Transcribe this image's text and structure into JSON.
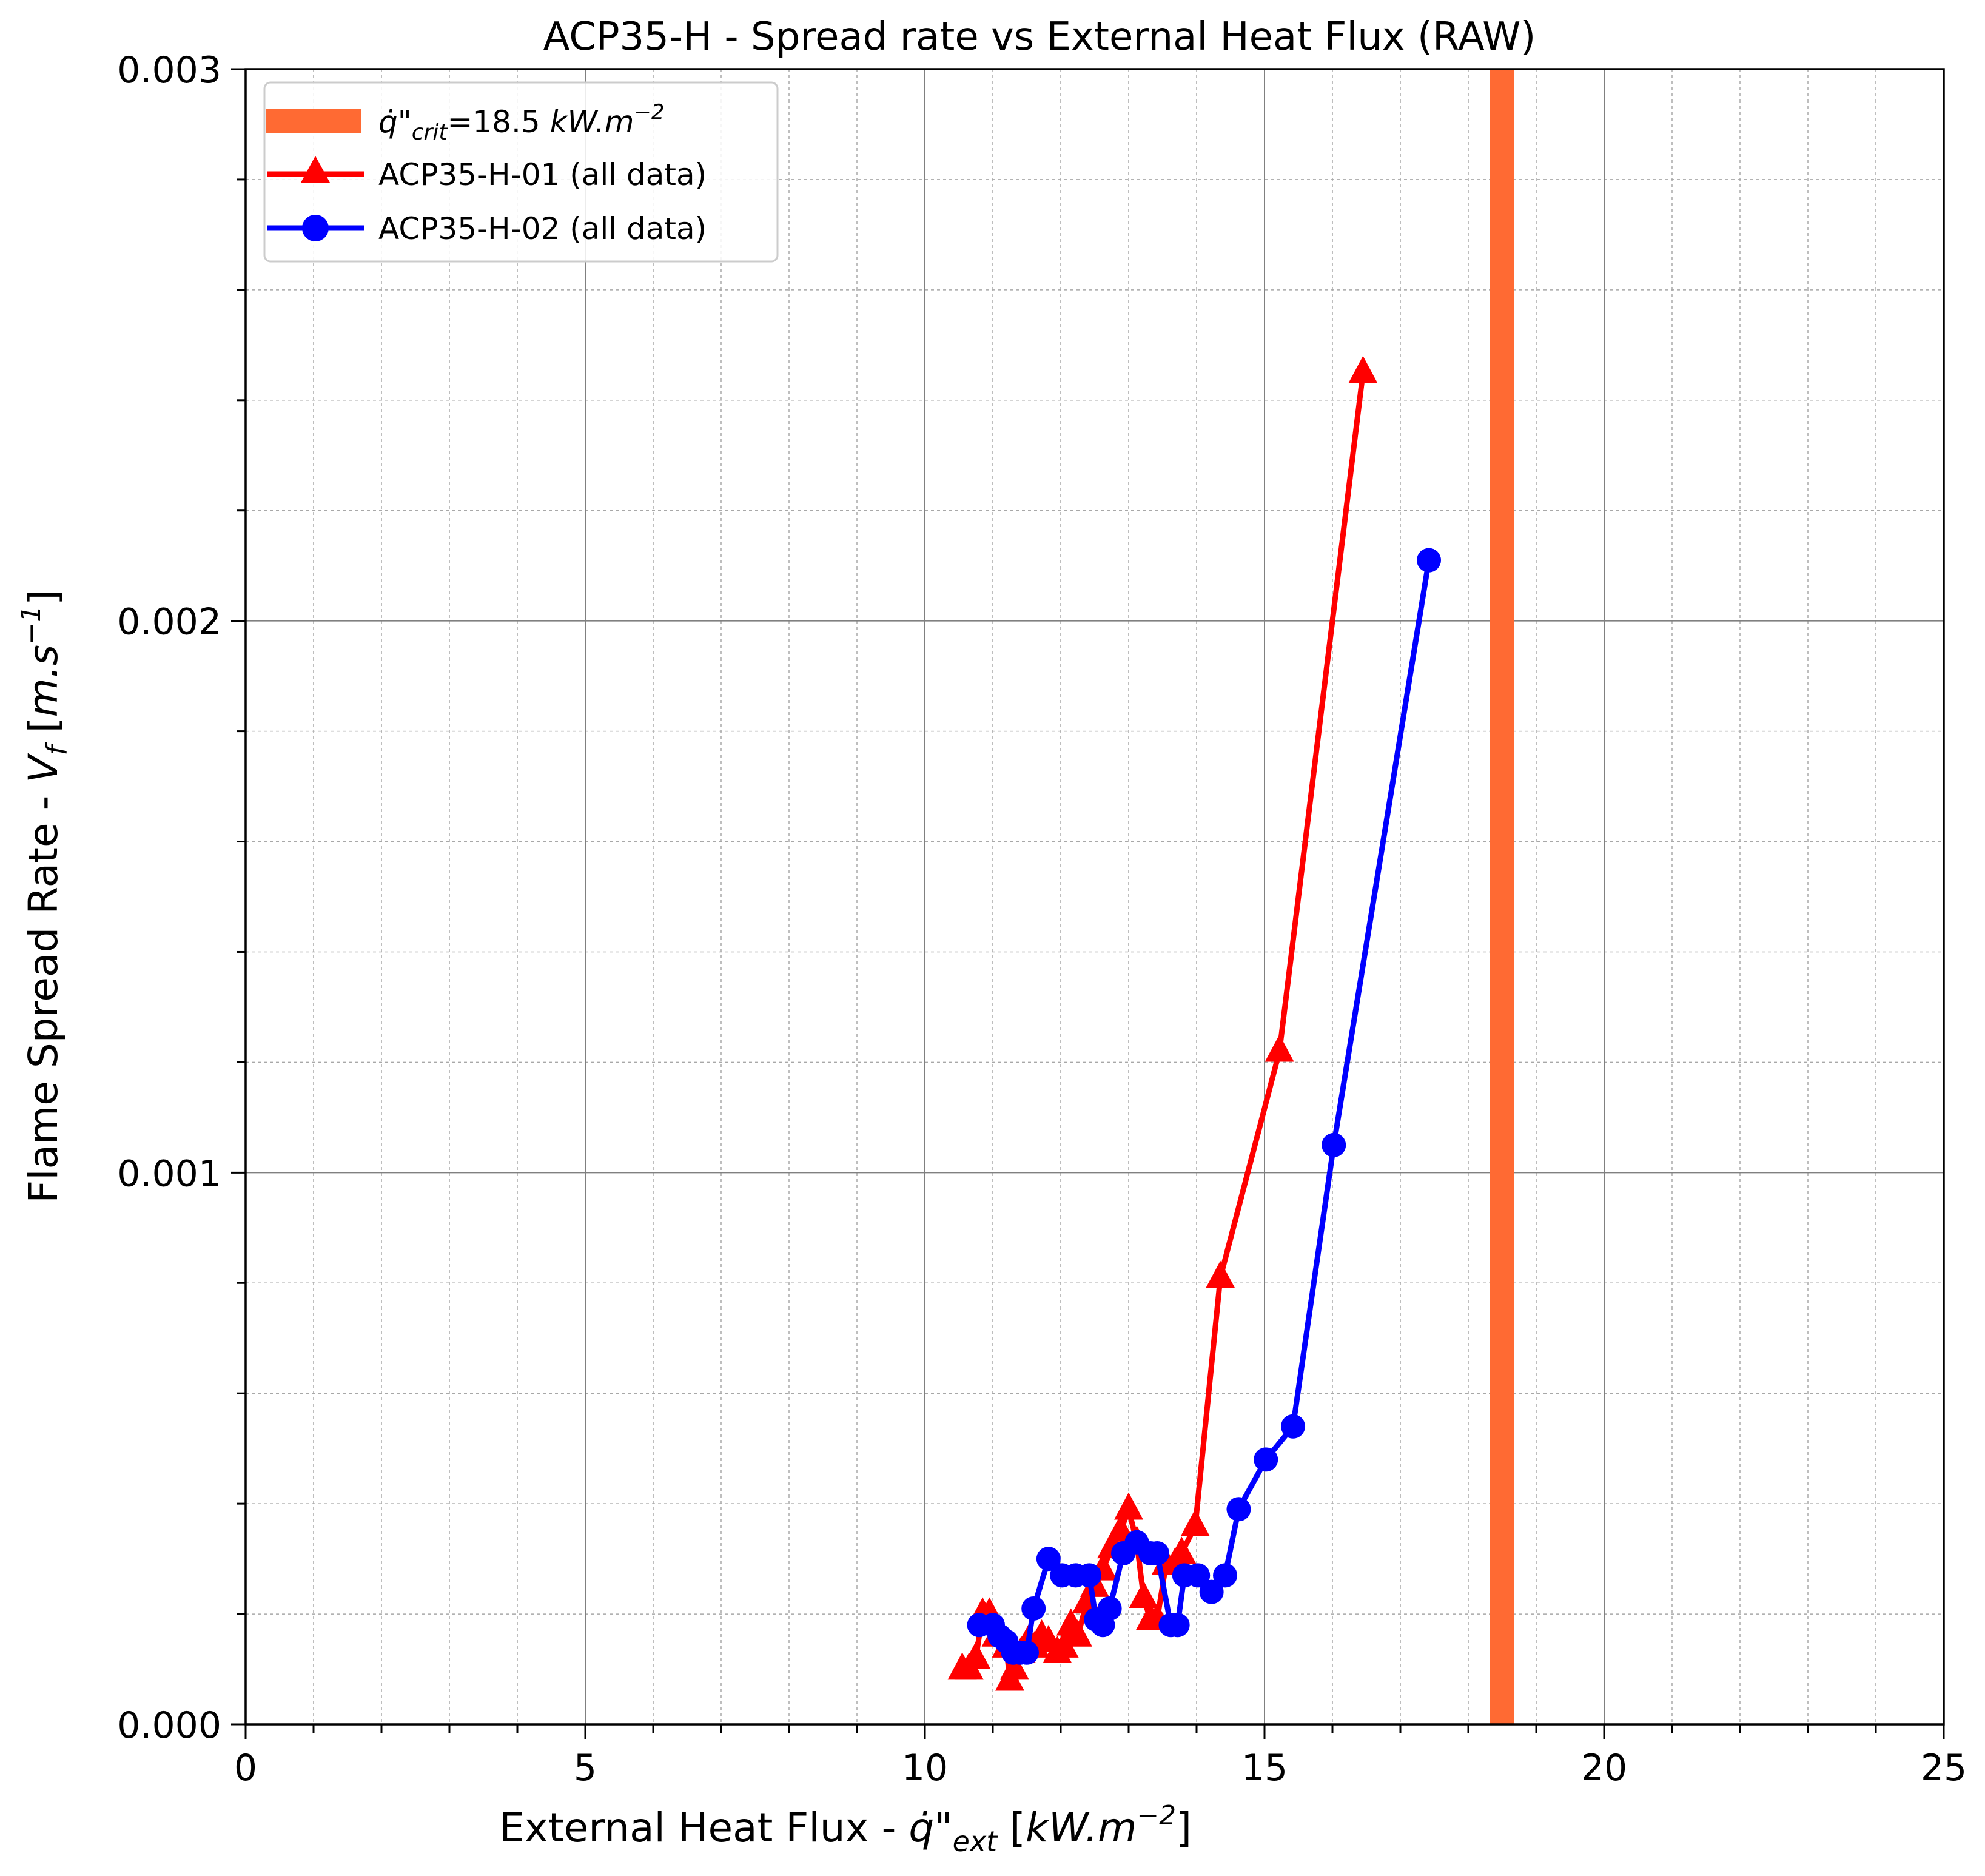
{
  "chart_data": {
    "type": "line",
    "title": "ACP35-H - Spread rate vs External Heat Flux (RAW)",
    "xlabel": {
      "main": "External Heat Flux - ",
      "sym": "q̇",
      "quote": "\"",
      "sub": "ext",
      "unit_open": " [",
      "unit_body": "kW.m",
      "unit_exp": "−2",
      "unit_close": "]"
    },
    "ylabel": {
      "main": "Flame Spread Rate - ",
      "sym": "V",
      "sub": "f",
      "unit_open": " [",
      "unit_body": "m.s",
      "unit_exp": "−1",
      "unit_close": "]"
    },
    "xlim": [
      0,
      25
    ],
    "ylim": [
      0,
      0.003
    ],
    "x_ticks": [
      "0",
      "5",
      "10",
      "15",
      "20",
      "25"
    ],
    "y_ticks": [
      "0.000",
      "0.001",
      "0.002",
      "0.003"
    ],
    "grid": true,
    "legend_position": "top-left",
    "critical_line": {
      "x": 18.5,
      "color": "#ff6a33",
      "label": {
        "sym": "q̇",
        "quote": "\"",
        "sub": "crit",
        "eq": "=18.5 ",
        "unit_body": "kW.m",
        "unit_exp": "−2"
      }
    },
    "series": [
      {
        "name": "ACP35-H-01 (all data)",
        "color": "#ff0000",
        "marker": "triangle",
        "x": [
          10.55,
          10.65,
          10.75,
          10.85,
          10.95,
          11.05,
          11.2,
          11.25,
          11.32,
          11.42,
          11.52,
          11.62,
          11.72,
          11.82,
          11.95,
          12.05,
          12.15,
          12.25,
          12.38,
          12.5,
          12.62,
          12.75,
          12.88,
          13.0,
          13.12,
          13.22,
          13.32,
          13.42,
          13.55,
          13.68,
          13.78,
          13.98,
          14.35,
          15.22,
          16.45
        ],
        "y": [
          0.0001,
          0.0001,
          0.00012,
          0.0002,
          0.0002,
          0.00016,
          0.00014,
          8e-05,
          0.0001,
          0.00013,
          0.00015,
          0.00014,
          0.00016,
          0.00015,
          0.00013,
          0.00014,
          0.00018,
          0.00016,
          0.00022,
          0.00025,
          0.00028,
          0.00032,
          0.00035,
          0.00039,
          0.00033,
          0.00023,
          0.00019,
          0.00019,
          0.00029,
          0.00029,
          0.00031,
          0.00036,
          0.00081,
          0.00122,
          0.00245
        ]
      },
      {
        "name": "ACP35-H-02 (all data)",
        "color": "#0000ff",
        "marker": "circle",
        "x": [
          10.8,
          11.0,
          11.1,
          11.2,
          11.3,
          11.4,
          11.5,
          11.6,
          11.82,
          12.02,
          12.22,
          12.42,
          12.52,
          12.62,
          12.72,
          12.92,
          13.12,
          13.32,
          13.42,
          13.62,
          13.72,
          13.82,
          14.02,
          14.22,
          14.42,
          14.62,
          15.02,
          15.42,
          16.02,
          17.42
        ],
        "y": [
          0.00018,
          0.00018,
          0.00016,
          0.00015,
          0.00013,
          0.00013,
          0.00013,
          0.00021,
          0.0003,
          0.00027,
          0.00027,
          0.00027,
          0.00019,
          0.00018,
          0.00021,
          0.00031,
          0.00033,
          0.00031,
          0.00031,
          0.00018,
          0.00018,
          0.00027,
          0.00027,
          0.00024,
          0.00027,
          0.00039,
          0.00048,
          0.00054,
          0.00105,
          0.00211
        ]
      }
    ]
  }
}
